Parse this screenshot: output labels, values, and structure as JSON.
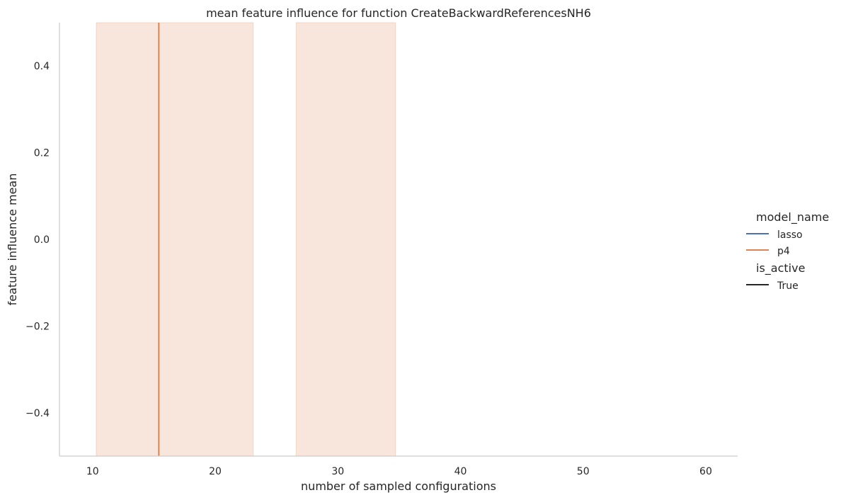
{
  "chart_data": {
    "type": "line",
    "title": "mean feature influence for function CreateBackwardReferencesNH6",
    "xlabel": "number of sampled configurations",
    "ylabel": "feature influence mean",
    "xlim": [
      7.3,
      62.6
    ],
    "ylim": [
      -0.5,
      0.5
    ],
    "xticks": [
      10,
      20,
      30,
      40,
      50,
      60
    ],
    "yticks": [
      -0.4,
      -0.2,
      0.0,
      0.2,
      0.4
    ],
    "ytick_labels": [
      "−0.4",
      "−0.2",
      "0.0",
      "0.2",
      "0.4"
    ],
    "grid": false,
    "legend_position": "right",
    "legend": {
      "groups": [
        {
          "title": "model_name",
          "entries": [
            {
              "label": "lasso",
              "color": "#4c72b0"
            },
            {
              "label": "p4",
              "color": "#dd8452"
            }
          ]
        },
        {
          "title": "is_active",
          "entries": [
            {
              "label": "True",
              "color": "#262626"
            }
          ]
        }
      ]
    },
    "series": [
      {
        "name": "p4",
        "color": "#dd8452",
        "vertical_lines": [
          15.4
        ],
        "confidence_bands": [
          [
            10.3,
            23.1
          ],
          [
            26.6,
            34.7
          ]
        ]
      }
    ]
  }
}
